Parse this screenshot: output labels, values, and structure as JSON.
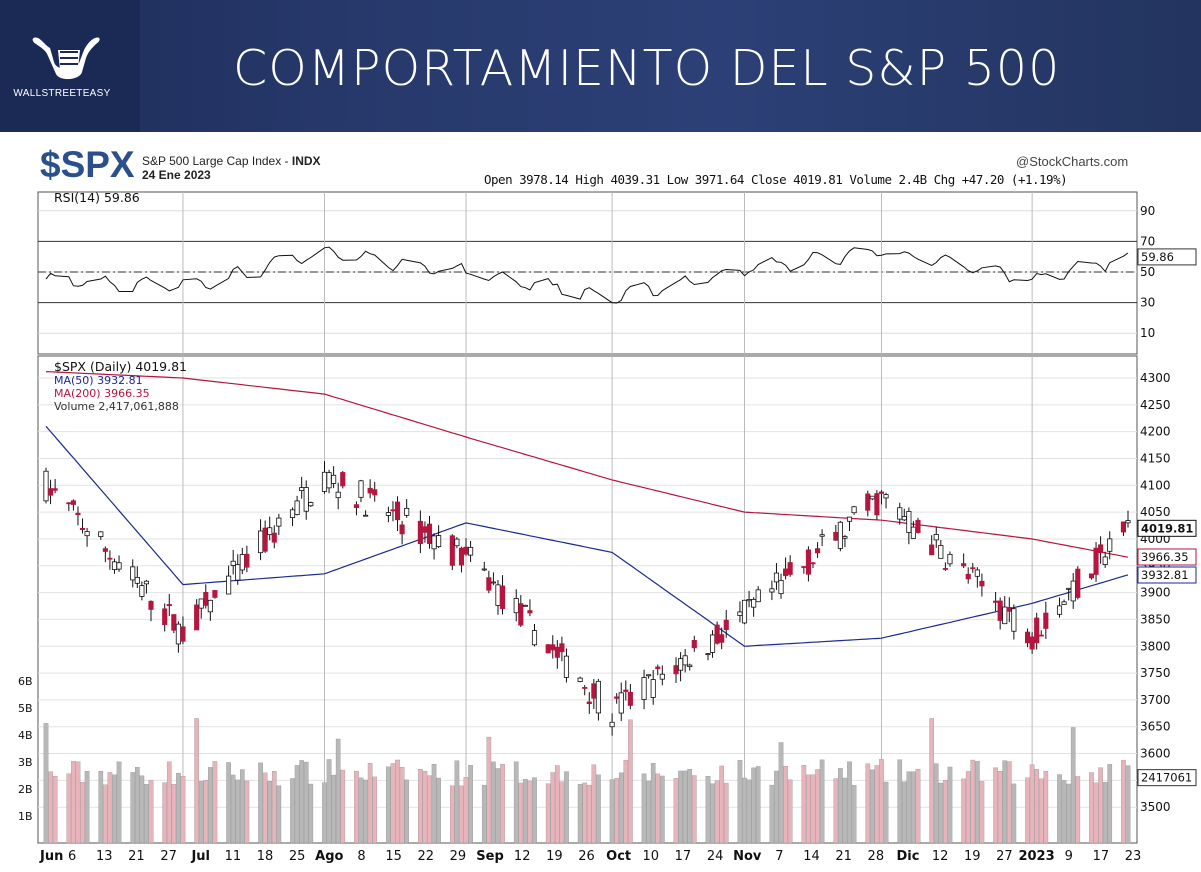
{
  "banner": {
    "title": "COMPORTAMIENTO DEL S&P 500",
    "logo_text": "WALLSTREETEASY",
    "logo_icon": "bull-fist-icon"
  },
  "header": {
    "symbol": "$SPX",
    "name_prefix": "S&P 500 Large Cap Index - ",
    "exchange": "INDX",
    "date": "24 Ene 2023",
    "source": "@StockCharts.com",
    "ohlc_line": "Open 3978.14 High 4039.31 Low 3971.64 Close 4019.81 Volume 2.4B Chg +47.20 (+1.19%)"
  },
  "rsi_panel": {
    "legend": "RSI(14) 59.86",
    "axis_ticks": [
      "90",
      "70",
      "50",
      "30",
      "10"
    ],
    "current_label": "59.86"
  },
  "price_panel": {
    "legend_main": "$SPX (Daily) 4019.81",
    "legend_ma50": "MA(50) 3932.81",
    "legend_ma200": "MA(200) 3966.35",
    "legend_volume": "Volume 2,417,061,888",
    "axis_ticks": [
      "4300",
      "4250",
      "4200",
      "4150",
      "4100",
      "4050",
      "4000",
      "3950",
      "3900",
      "3850",
      "3800",
      "3750",
      "3700",
      "3650",
      "3600",
      "3550",
      "3500"
    ],
    "volume_ticks": [
      "6B",
      "5B",
      "4B",
      "3B",
      "2B",
      "1B"
    ],
    "tags": {
      "close": "4019.81",
      "ma200": "3966.35",
      "ma50": "3932.81",
      "volume": "2417061"
    }
  },
  "x_axis": {
    "labels": [
      "Jun",
      "6",
      "13",
      "21",
      "27",
      "Jul",
      "11",
      "18",
      "25",
      "Ago",
      "8",
      "15",
      "22",
      "29",
      "Sep",
      "12",
      "19",
      "26",
      "Oct",
      "10",
      "17",
      "24",
      "Nov",
      "7",
      "14",
      "21",
      "28",
      "Dic",
      "12",
      "19",
      "27",
      "2023",
      "9",
      "17",
      "23"
    ],
    "bold_labels": [
      "Jun",
      "Jul",
      "Ago",
      "Sep",
      "Oct",
      "Nov",
      "Dic",
      "2023"
    ]
  },
  "colors": {
    "up": "#ffffff",
    "down": "#b5163f",
    "ma50": "#1c2a90",
    "ma200": "#b5163f",
    "vol_up": "#b8b8b8",
    "vol_down": "#e8b4bc",
    "rsi": "#111111",
    "banner": "#27396b"
  },
  "chart_data": {
    "type": "candlestick",
    "title": "$SPX",
    "period": "2022-06-01 to 2023-01-24, daily",
    "x": [
      "2022-06-01",
      "2022-07-01",
      "2022-08-01",
      "2022-09-01",
      "2022-10-03",
      "2022-11-01",
      "2022-12-01",
      "2023-01-03",
      "2023-01-24"
    ],
    "series": [
      {
        "name": "$SPX",
        "close": [
          4101,
          3825,
          4118,
          3966,
          3678,
          3856,
          4077,
          3824,
          4020
        ]
      },
      {
        "name": "MA(50)",
        "values": [
          4210,
          3915,
          3935,
          4030,
          3975,
          3800,
          3815,
          3880,
          3933
        ]
      },
      {
        "name": "MA(200)",
        "values": [
          4312,
          4300,
          4270,
          4190,
          4110,
          4050,
          4035,
          4000,
          3966
        ]
      },
      {
        "name": "RSI(14)",
        "values": [
          46,
          40,
          63,
          50,
          33,
          52,
          64,
          45,
          59.86
        ]
      }
    ],
    "ylim": [
      3500,
      4330
    ],
    "rsi_levels": [
      70,
      50,
      30
    ],
    "rsi_ylim": [
      0,
      100
    ]
  }
}
